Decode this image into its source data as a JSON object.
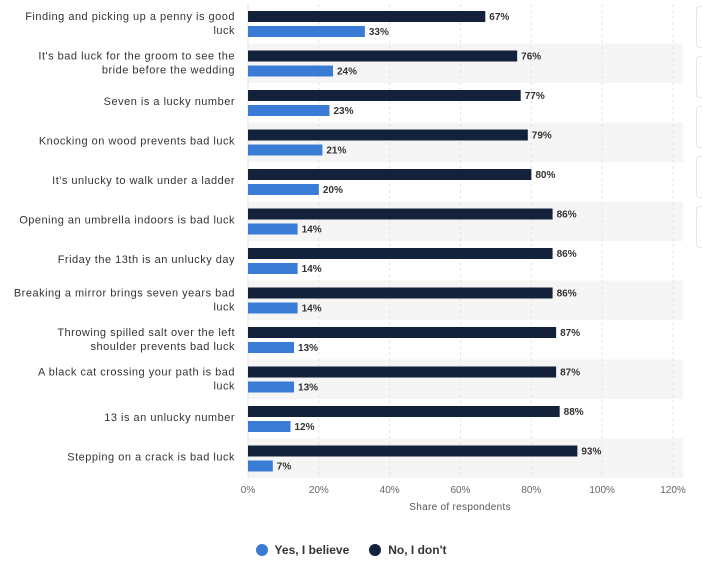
{
  "colors": {
    "yes": "#3a7bd5",
    "no": "#13223a",
    "grid": "#e4e4e4",
    "band": "#f5f5f5"
  },
  "chart_data": {
    "type": "bar",
    "orientation": "horizontal",
    "categories": [
      [
        "Finding and picking up a penny is good",
        "luck"
      ],
      [
        "It's bad luck for the groom to see the",
        "bride before the wedding"
      ],
      [
        "Seven is a lucky number"
      ],
      [
        "Knocking on wood prevents bad luck"
      ],
      [
        "It's unlucky to walk under a ladder"
      ],
      [
        "Opening an umbrella indoors is bad luck"
      ],
      [
        "Friday the 13th is an unlucky day"
      ],
      [
        "Breaking a mirror brings seven years bad",
        "luck"
      ],
      [
        "Throwing spilled salt over the left",
        "shoulder prevents bad luck"
      ],
      [
        "A black cat crossing your path is bad",
        "luck"
      ],
      [
        "13 is an unlucky number"
      ],
      [
        "Stepping on a crack is bad luck"
      ]
    ],
    "series": [
      {
        "name": "No, I don't",
        "color": "#13223a",
        "values": [
          67,
          76,
          77,
          79,
          80,
          86,
          86,
          86,
          87,
          87,
          88,
          93
        ]
      },
      {
        "name": "Yes, I believe",
        "color": "#3a7bd5",
        "values": [
          33,
          24,
          23,
          21,
          20,
          14,
          14,
          14,
          13,
          13,
          12,
          7
        ]
      }
    ],
    "xlabel": "Share of respondents",
    "xlim": [
      0,
      120
    ],
    "xticks": [
      "0%",
      "20%",
      "40%",
      "60%",
      "80%",
      "100%",
      "120%"
    ],
    "value_suffix": "%",
    "grid": true,
    "legend_position": "bottom"
  },
  "legend": [
    {
      "label": "Yes, I believe",
      "color": "#3a7bd5"
    },
    {
      "label": "No, I don't",
      "color": "#13223a"
    }
  ]
}
